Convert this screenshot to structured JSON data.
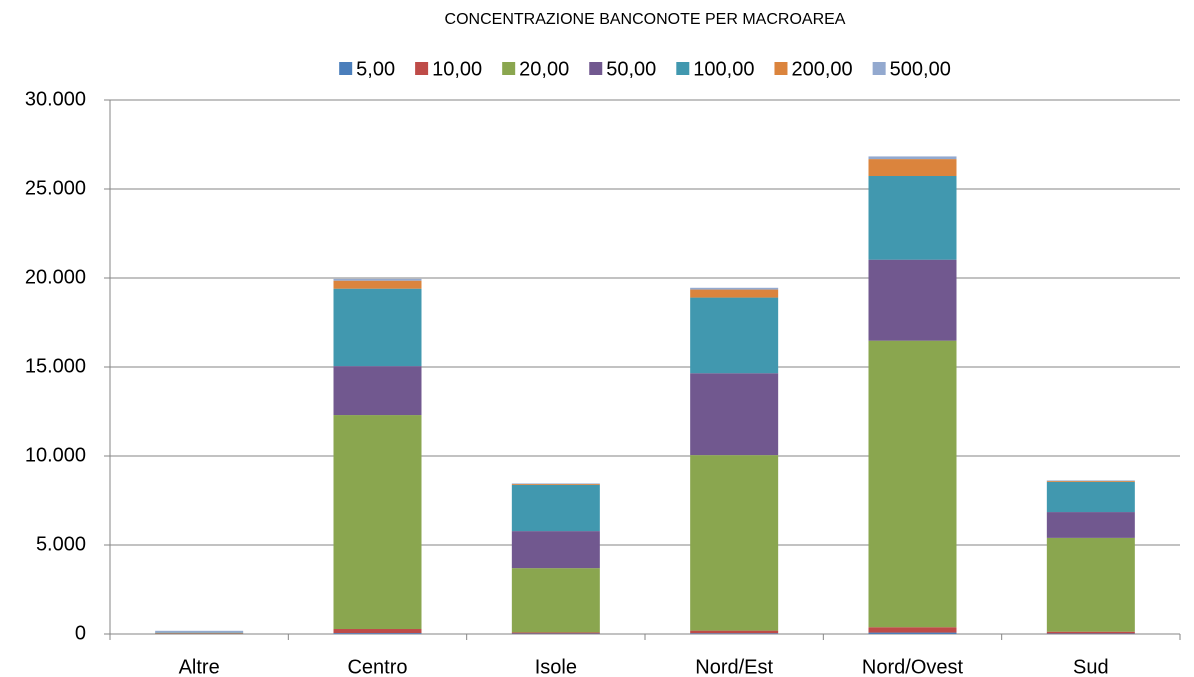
{
  "chart_data": {
    "type": "stacked_bar",
    "title": "CONCENTRAZIONE BANCONOTE PER MACROAREA",
    "categories": [
      "Altre",
      "Centro",
      "Isole",
      "Nord/Est",
      "Nord/Ovest",
      "Sud"
    ],
    "series": [
      {
        "name": "5,00",
        "color": "#4a7ebb",
        "values": [
          10,
          50,
          30,
          40,
          80,
          30
        ]
      },
      {
        "name": "10,00",
        "color": "#be4b48",
        "values": [
          20,
          230,
          60,
          150,
          300,
          100
        ]
      },
      {
        "name": "20,00",
        "color": "#8aa64f",
        "values": [
          20,
          12020,
          3610,
          9860,
          16100,
          5270
        ]
      },
      {
        "name": "50,00",
        "color": "#71588f",
        "values": [
          10,
          2750,
          2080,
          4600,
          4550,
          1450
        ]
      },
      {
        "name": "100,00",
        "color": "#4198af",
        "values": [
          20,
          4350,
          2600,
          4250,
          4700,
          1700
        ]
      },
      {
        "name": "200,00",
        "color": "#db843d",
        "values": [
          10,
          450,
          50,
          450,
          950,
          50
        ]
      },
      {
        "name": "500,00",
        "color": "#93a9cf",
        "values": [
          90,
          100,
          30,
          100,
          150,
          30
        ]
      }
    ],
    "ylim": [
      0,
      30000
    ],
    "yticks": [
      0,
      {
        "value": 5000,
        "label": "5.000"
      },
      {
        "value": 10000,
        "label": "10.000"
      },
      {
        "value": 15000,
        "label": "15.000"
      },
      {
        "value": 20000,
        "label": "20.000"
      },
      {
        "value": 25000,
        "label": "25.000"
      },
      {
        "value": 30000,
        "label": "30.000"
      }
    ],
    "grid": true,
    "legend": "top"
  }
}
